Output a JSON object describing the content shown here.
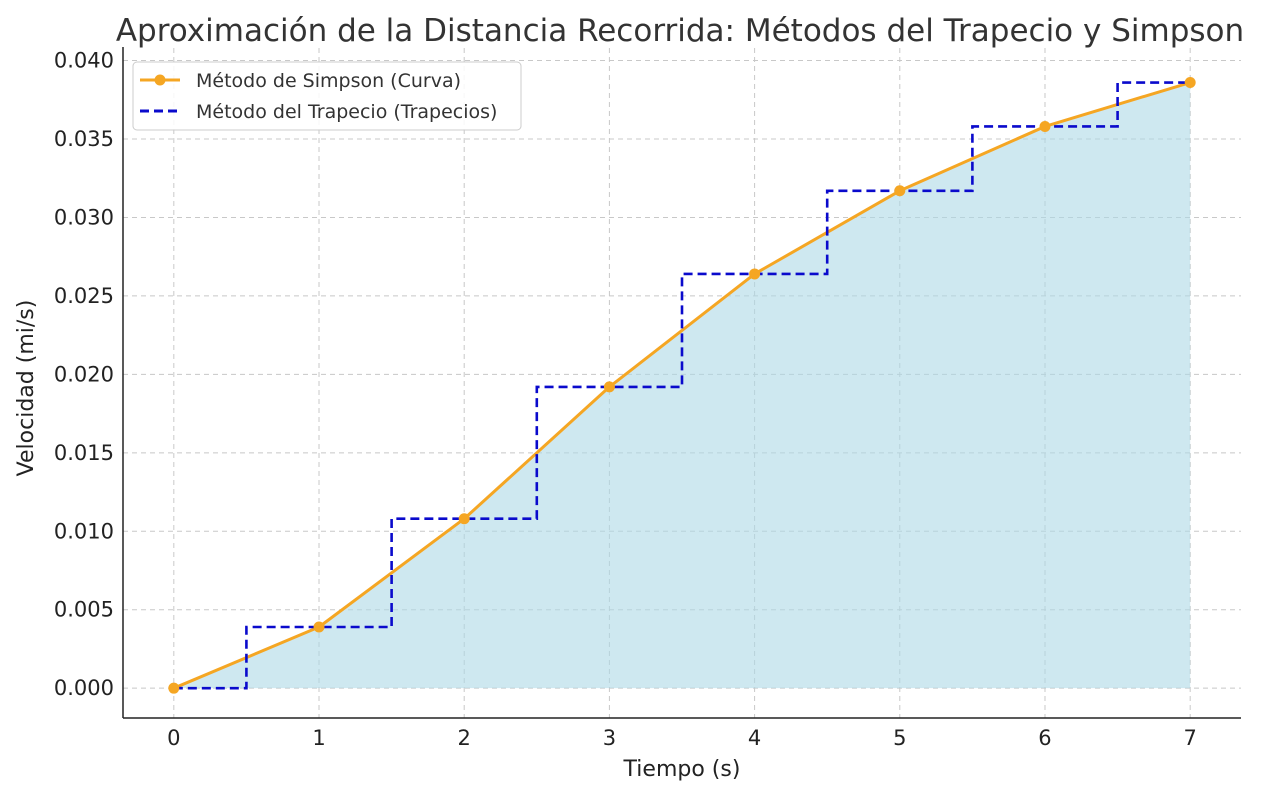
{
  "chart_data": {
    "type": "line",
    "title": "Aproximación de la Distancia Recorrida: Métodos del Trapecio y Simpson",
    "xlabel": "Tiempo (s)",
    "ylabel": "Velocidad (mi/s)",
    "xlim": [
      -0.35,
      7.35
    ],
    "ylim": [
      -0.0019,
      0.0408
    ],
    "x_ticks": [
      0,
      1,
      2,
      3,
      4,
      5,
      6,
      7
    ],
    "x_tick_labels": [
      "0",
      "1",
      "2",
      "3",
      "4",
      "5",
      "6",
      "7"
    ],
    "y_ticks": [
      0,
      0.005,
      0.01,
      0.015,
      0.02,
      0.025,
      0.03,
      0.035,
      0.04
    ],
    "y_tick_labels": [
      "0.000",
      "0.005",
      "0.010",
      "0.015",
      "0.020",
      "0.025",
      "0.030",
      "0.035",
      "0.040"
    ],
    "grid": true,
    "legend_position": "top-left",
    "x": [
      0,
      1,
      2,
      3,
      4,
      5,
      6,
      7
    ],
    "series": [
      {
        "name": "Método de Simpson (Curva)",
        "style": "solid-line-markers",
        "color": "#f5a623",
        "fill_color": "#add8e6",
        "values": [
          0.0,
          0.0039,
          0.0108,
          0.0192,
          0.0264,
          0.0317,
          0.0358,
          0.0386
        ]
      },
      {
        "name": "Método del Trapecio (Trapecios)",
        "style": "dashed-step-mid",
        "color": "#0a0acc",
        "values": [
          0.0,
          0.0039,
          0.0108,
          0.0192,
          0.0264,
          0.0317,
          0.0358,
          0.0386
        ]
      }
    ]
  }
}
